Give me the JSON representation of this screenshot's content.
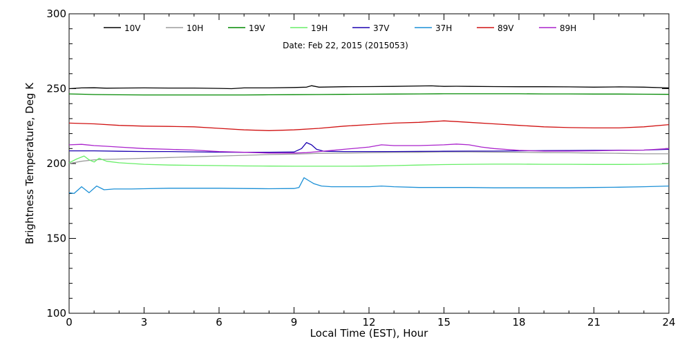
{
  "chart_data": {
    "type": "line",
    "title": "Date: Feb 22, 2015 (2015053)",
    "xlabel": "Local Time (EST), Hour",
    "ylabel": "Brightness Temperature, Deg K",
    "xlim": [
      0,
      24
    ],
    "ylim": [
      100,
      300
    ],
    "xticks": [
      0,
      3,
      6,
      9,
      12,
      15,
      18,
      21,
      24
    ],
    "xtick_labels": [
      "0",
      "3",
      "6",
      "9",
      "12",
      "15",
      "18",
      "21",
      "24"
    ],
    "yticks": [
      100,
      150,
      200,
      250,
      300
    ],
    "ytick_labels": [
      "100",
      "150",
      "200",
      "250",
      "300"
    ],
    "grid": false,
    "legend_position": "top",
    "series": [
      {
        "name": "10V",
        "color": "#000000",
        "x": [
          0,
          0.5,
          1,
          1.5,
          2,
          3,
          4,
          5,
          6,
          6.5,
          7,
          8,
          9,
          9.5,
          9.7,
          10,
          11,
          12,
          13,
          14,
          14.5,
          15,
          15.5,
          16,
          17,
          18,
          19,
          20,
          21,
          22,
          23,
          24
        ],
        "y": [
          250.0,
          250.5,
          250.6,
          250.3,
          250.4,
          250.5,
          250.4,
          250.4,
          250.2,
          250.0,
          250.5,
          250.5,
          250.8,
          251.0,
          252.0,
          251.0,
          251.3,
          251.4,
          251.5,
          251.8,
          251.9,
          251.5,
          251.6,
          251.5,
          251.4,
          251.3,
          251.3,
          251.2,
          251.0,
          251.2,
          251.0,
          250.5
        ]
      },
      {
        "name": "10H",
        "color": "#9c9c9c",
        "x": [
          0,
          0.5,
          1,
          1.5,
          2,
          3,
          4,
          5,
          6,
          7,
          8,
          9,
          9.5,
          10,
          11,
          12,
          13,
          14,
          15,
          16,
          17,
          18,
          19,
          20,
          21,
          22,
          23,
          24
        ],
        "y": [
          200.0,
          201.5,
          202.5,
          202.8,
          203.0,
          203.5,
          204.0,
          204.5,
          205.0,
          205.5,
          206.0,
          206.3,
          206.5,
          206.8,
          207.0,
          207.2,
          207.4,
          207.5,
          207.8,
          207.8,
          207.6,
          207.5,
          207.3,
          207.2,
          207.0,
          206.8,
          206.5,
          206.5
        ]
      },
      {
        "name": "19V",
        "color": "#008800",
        "x": [
          0,
          0.5,
          1,
          2,
          3,
          4,
          5,
          6,
          7,
          8,
          9,
          10,
          11,
          12,
          13,
          14,
          15,
          16,
          17,
          18,
          19,
          20,
          21,
          22,
          23,
          24
        ],
        "y": [
          246.5,
          246.3,
          246.1,
          245.9,
          245.8,
          245.8,
          245.8,
          245.8,
          245.8,
          245.9,
          246.0,
          246.1,
          246.2,
          246.3,
          246.4,
          246.5,
          246.6,
          246.6,
          246.6,
          246.6,
          246.5,
          246.5,
          246.4,
          246.4,
          246.3,
          246.2
        ]
      },
      {
        "name": "19H",
        "color": "#66ee66",
        "x": [
          0,
          0.3,
          0.6,
          0.8,
          1.0,
          1.2,
          1.5,
          2,
          3,
          4,
          5,
          6,
          7,
          8,
          9,
          10,
          11,
          12,
          13,
          14,
          15,
          16,
          17,
          18,
          19,
          20,
          21,
          22,
          23,
          24
        ],
        "y": [
          200.5,
          203.0,
          205.0,
          202.5,
          201.0,
          203.5,
          201.5,
          200.5,
          199.5,
          199.0,
          198.8,
          198.6,
          198.4,
          198.3,
          198.2,
          198.2,
          198.2,
          198.3,
          198.6,
          199.0,
          199.3,
          199.5,
          199.6,
          199.6,
          199.5,
          199.5,
          199.4,
          199.4,
          199.5,
          199.8
        ]
      },
      {
        "name": "37V",
        "color": "#1a00b0",
        "x": [
          0,
          1,
          2,
          3,
          4,
          5,
          6,
          7,
          8,
          9,
          9.3,
          9.5,
          9.7,
          9.9,
          10.2,
          11,
          12,
          13,
          14,
          15,
          16,
          17,
          18,
          19,
          20,
          21,
          22,
          23,
          24
        ],
        "y": [
          208.5,
          208.5,
          208.2,
          208.0,
          208.0,
          207.8,
          207.6,
          207.5,
          207.5,
          207.7,
          210.0,
          214.0,
          212.5,
          209.5,
          208.2,
          208.0,
          208.0,
          208.0,
          208.1,
          208.2,
          208.3,
          208.3,
          208.5,
          208.6,
          208.7,
          208.8,
          208.9,
          209.0,
          209.5
        ]
      },
      {
        "name": "37H",
        "color": "#1a8fd6",
        "x": [
          0,
          0.2,
          0.5,
          0.8,
          1.1,
          1.4,
          1.8,
          2.5,
          3,
          4,
          5,
          6,
          7,
          8,
          9,
          9.2,
          9.4,
          9.6,
          9.8,
          10.1,
          10.5,
          11,
          12,
          12.5,
          13,
          14,
          15,
          16,
          17,
          18,
          19,
          20,
          21,
          22,
          23,
          24
        ],
        "y": [
          180.5,
          180.0,
          184.5,
          180.5,
          185.0,
          182.5,
          183.0,
          183.0,
          183.2,
          183.5,
          183.5,
          183.5,
          183.3,
          183.2,
          183.3,
          184.0,
          190.5,
          188.5,
          186.5,
          185.0,
          184.5,
          184.5,
          184.5,
          185.0,
          184.5,
          184.0,
          184.0,
          184.0,
          183.8,
          183.8,
          183.8,
          183.8,
          184.0,
          184.2,
          184.5,
          185.0
        ]
      },
      {
        "name": "89V",
        "color": "#d01010",
        "x": [
          0,
          1,
          2,
          3,
          4,
          5,
          6,
          7,
          8,
          9,
          10,
          11,
          12,
          13,
          14,
          15,
          15.5,
          16,
          17,
          18,
          19,
          20,
          21,
          22,
          23,
          24
        ],
        "y": [
          227.0,
          226.5,
          225.5,
          225.0,
          224.8,
          224.5,
          223.5,
          222.5,
          222.0,
          222.5,
          223.5,
          225.0,
          226.0,
          227.0,
          227.5,
          228.5,
          228.0,
          227.5,
          226.5,
          225.5,
          224.5,
          224.0,
          223.8,
          223.8,
          224.5,
          226.0
        ]
      },
      {
        "name": "89H",
        "color": "#aa22cc",
        "x": [
          0,
          0.5,
          1,
          1.5,
          2,
          3,
          4,
          5,
          6,
          7,
          8,
          9,
          9.5,
          10,
          11,
          12,
          12.5,
          13,
          14,
          15,
          15.5,
          16,
          16.5,
          17,
          18,
          19,
          20,
          21,
          22,
          23,
          24
        ],
        "y": [
          212.5,
          212.8,
          212.0,
          211.5,
          211.0,
          210.0,
          209.5,
          209.0,
          208.0,
          207.5,
          207.0,
          207.0,
          207.3,
          208.0,
          209.5,
          211.0,
          212.5,
          212.0,
          212.0,
          212.5,
          213.0,
          212.5,
          211.0,
          210.0,
          208.8,
          208.3,
          208.3,
          208.5,
          208.8,
          209.0,
          210.0
        ]
      }
    ]
  }
}
